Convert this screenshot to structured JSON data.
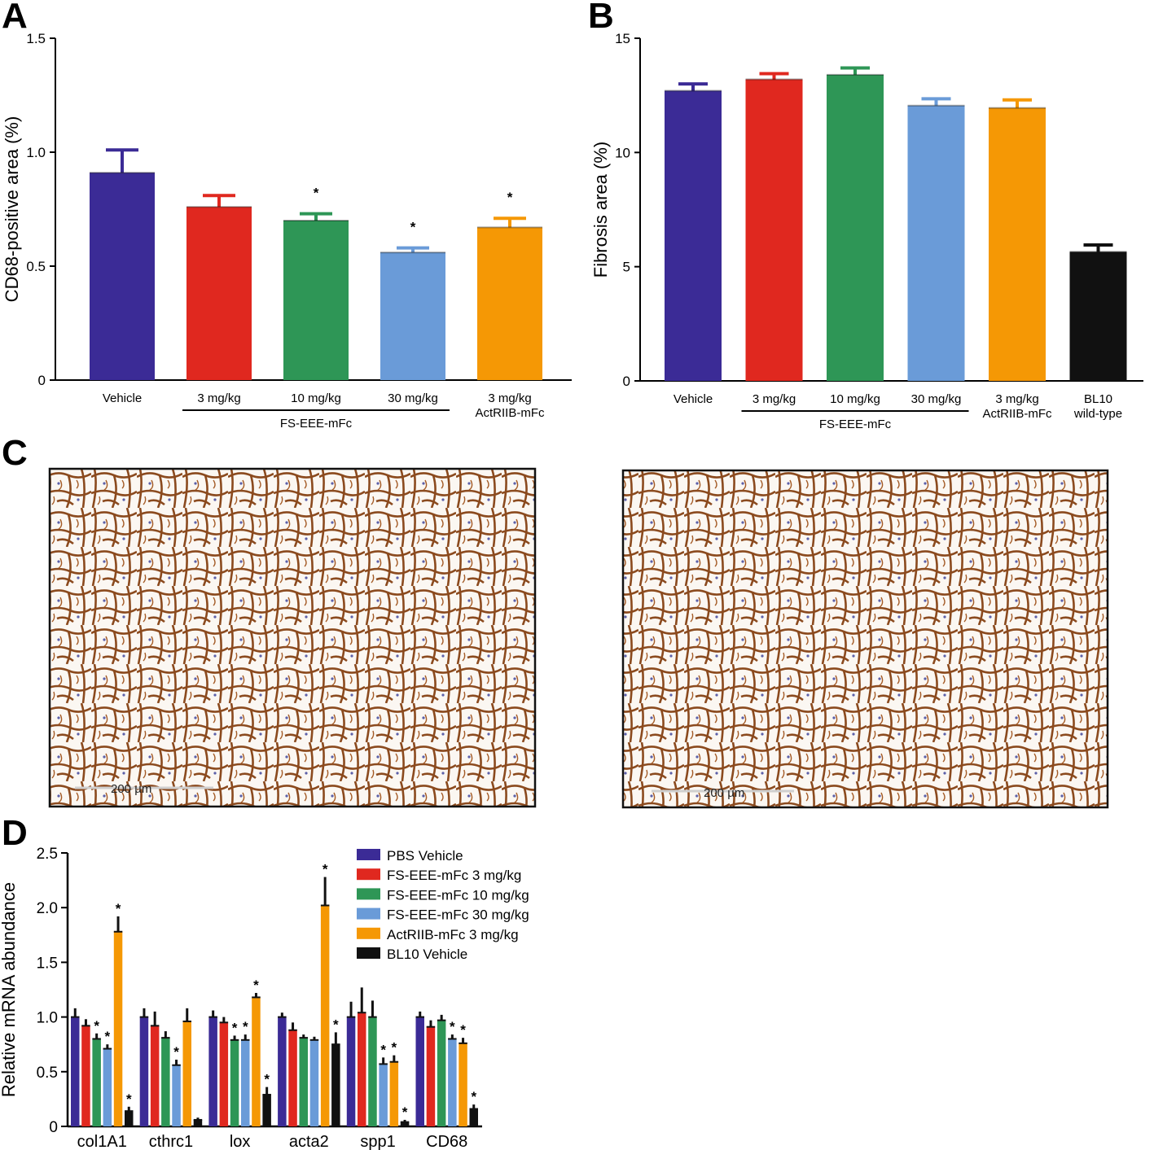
{
  "panels": {
    "a": "A",
    "b": "B",
    "c": "C",
    "d": "D"
  },
  "colors": {
    "vehicle": "#3b2b96",
    "fs3": "#e0281f",
    "fs10": "#2e9656",
    "fs30": "#6a9bd8",
    "actriib": "#f59805",
    "bl10": "#111111",
    "stain": "#8b4a1e"
  },
  "chart_data": [
    {
      "id": "A",
      "type": "bar",
      "ylabel": "CD68-positive area (%)",
      "xlabel": "",
      "ylim": [
        0,
        1.5
      ],
      "yticks": [
        "0",
        "0.5",
        "1.0",
        "1.5"
      ],
      "categories": [
        "Vehicle",
        "3 mg/kg",
        "10 mg/kg",
        "30 mg/kg",
        "3 mg/kg ActRIIB-mFc"
      ],
      "category_lines": [
        [
          "Vehicle"
        ],
        [
          "3 mg/kg"
        ],
        [
          "10 mg/kg"
        ],
        [
          "30 mg/kg"
        ],
        [
          "3 mg/kg",
          "ActRIIB-mFc"
        ]
      ],
      "values": [
        0.91,
        0.76,
        0.7,
        0.56,
        0.67
      ],
      "errors": [
        0.1,
        0.05,
        0.03,
        0.02,
        0.04
      ],
      "significant": [
        false,
        false,
        true,
        true,
        true
      ],
      "color_keys": [
        "vehicle",
        "fs3",
        "fs10",
        "fs30",
        "actriib"
      ],
      "group_label": "FS-EEE-mFc"
    },
    {
      "id": "B",
      "type": "bar",
      "ylabel": "Fibrosis area (%)",
      "xlabel": "",
      "ylim": [
        0,
        15
      ],
      "yticks": [
        "0",
        "5",
        "10",
        "15"
      ],
      "categories": [
        "Vehicle",
        "3 mg/kg",
        "10 mg/kg",
        "30 mg/kg",
        "3 mg/kg ActRIIB-mFc",
        "BL10 wild-type"
      ],
      "category_lines": [
        [
          "Vehicle"
        ],
        [
          "3 mg/kg"
        ],
        [
          "10 mg/kg"
        ],
        [
          "30 mg/kg"
        ],
        [
          "3 mg/kg",
          "ActRIIB-mFc"
        ],
        [
          "BL10",
          "wild-type"
        ]
      ],
      "values": [
        12.7,
        13.2,
        13.4,
        12.05,
        11.95,
        5.65
      ],
      "errors": [
        0.3,
        0.25,
        0.3,
        0.3,
        0.35,
        0.3
      ],
      "significant": [
        false,
        false,
        false,
        false,
        false,
        false
      ],
      "color_keys": [
        "vehicle",
        "fs3",
        "fs10",
        "fs30",
        "actriib",
        "bl10"
      ],
      "group_label": "FS-EEE-mFc"
    },
    {
      "id": "D",
      "type": "bar",
      "ylabel": "Relative mRNA abundance",
      "xlabel": "",
      "ylim": [
        0,
        2.5
      ],
      "yticks": [
        "0",
        "0.5",
        "1.0",
        "1.5",
        "2.0",
        "2.5"
      ],
      "categories": [
        "col1A1",
        "cthrc1",
        "lox",
        "acta2",
        "spp1",
        "CD68"
      ],
      "series": [
        {
          "name": "PBS Vehicle",
          "color_key": "vehicle",
          "values": [
            1.0,
            1.0,
            1.0,
            1.0,
            1.0,
            1.0
          ],
          "errors": [
            0.08,
            0.08,
            0.06,
            0.04,
            0.14,
            0.05
          ],
          "significant": [
            false,
            false,
            false,
            false,
            false,
            false
          ]
        },
        {
          "name": "FS-EEE-mFc 3 mg/kg",
          "color_key": "fs3",
          "values": [
            0.92,
            0.92,
            0.95,
            0.88,
            1.04,
            0.91
          ],
          "errors": [
            0.06,
            0.13,
            0.05,
            0.07,
            0.23,
            0.06
          ],
          "significant": [
            false,
            false,
            false,
            false,
            false,
            false
          ]
        },
        {
          "name": "FS-EEE-mFc 10 mg/kg",
          "color_key": "fs10",
          "values": [
            0.8,
            0.81,
            0.79,
            0.81,
            1.0,
            0.97
          ],
          "errors": [
            0.05,
            0.06,
            0.04,
            0.03,
            0.15,
            0.05
          ],
          "significant": [
            true,
            false,
            true,
            false,
            false,
            false
          ]
        },
        {
          "name": "FS-EEE-mFc 30 mg/kg",
          "color_key": "fs30",
          "values": [
            0.71,
            0.56,
            0.79,
            0.79,
            0.57,
            0.8
          ],
          "errors": [
            0.04,
            0.05,
            0.05,
            0.03,
            0.06,
            0.04
          ],
          "significant": [
            true,
            true,
            true,
            false,
            true,
            true
          ]
        },
        {
          "name": "ActRIIB-mFc 3 mg/kg",
          "color_key": "actriib",
          "values": [
            1.78,
            0.96,
            1.18,
            2.02,
            0.59,
            0.76
          ],
          "errors": [
            0.14,
            0.12,
            0.04,
            0.26,
            0.06,
            0.05
          ],
          "significant": [
            true,
            false,
            true,
            true,
            true,
            true
          ]
        },
        {
          "name": "BL10 Vehicle",
          "color_key": "bl10",
          "values": [
            0.14,
            0.06,
            0.29,
            0.75,
            0.04,
            0.16
          ],
          "errors": [
            0.04,
            0.02,
            0.07,
            0.11,
            0.02,
            0.04
          ],
          "significant": [
            true,
            false,
            true,
            true,
            true,
            true
          ]
        }
      ]
    }
  ],
  "micrographs": [
    {
      "id": "left",
      "scale_label": "200 µm"
    },
    {
      "id": "right",
      "scale_label": "200 µm"
    }
  ]
}
